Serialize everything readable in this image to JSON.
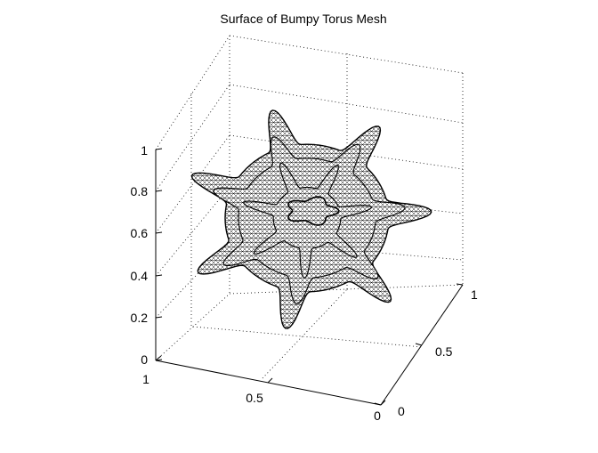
{
  "chart_data": {
    "type": "surface",
    "title": "Surface of Bumpy Torus Mesh",
    "xlabel": "",
    "ylabel": "",
    "zlabel": "",
    "grid": true,
    "xlim": [
      0,
      1
    ],
    "ylim": [
      0,
      1
    ],
    "zlim": [
      0,
      1
    ],
    "x_ticks": [
      "1",
      "0.5",
      "0"
    ],
    "y_ticks": [
      "0",
      "0.5",
      "1"
    ],
    "z_ticks": [
      "0",
      "0.2",
      "0.4",
      "0.6",
      "0.8",
      "1"
    ],
    "colors": {
      "mesh_edge": "#000000",
      "mesh_face": "#ffffff"
    }
  }
}
